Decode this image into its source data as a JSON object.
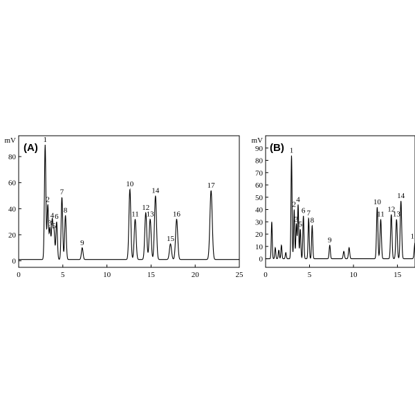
{
  "chart_data": [
    {
      "type": "line",
      "panel_label": "(A)",
      "ylabel": "mV",
      "xlim": [
        0,
        25
      ],
      "ylim": [
        -5,
        96
      ],
      "x_ticks": [
        0,
        5,
        10,
        15,
        20,
        25
      ],
      "y_ticks": [
        0,
        20,
        40,
        60,
        80
      ],
      "baseline": 1,
      "peaks": [
        {
          "label": "1",
          "t": 3.0,
          "h": 88
        },
        {
          "label": "2",
          "t": 3.3,
          "h": 42
        },
        {
          "label": "3",
          "t": 3.55,
          "h": 24
        },
        {
          "label": "4",
          "t": 3.8,
          "h": 30
        },
        {
          "label": "5",
          "t": 4.0,
          "h": 22
        },
        {
          "label": "6",
          "t": 4.3,
          "h": 29
        },
        {
          "label": "7",
          "t": 4.9,
          "h": 48
        },
        {
          "label": "8",
          "t": 5.3,
          "h": 34
        },
        {
          "label": "9",
          "t": 7.2,
          "h": 9
        },
        {
          "label": "10",
          "t": 12.6,
          "h": 54
        },
        {
          "label": "11",
          "t": 13.2,
          "h": 31
        },
        {
          "label": "12",
          "t": 14.4,
          "h": 36
        },
        {
          "label": "13",
          "t": 14.9,
          "h": 31
        },
        {
          "label": "14",
          "t": 15.5,
          "h": 49
        },
        {
          "label": "15",
          "t": 17.2,
          "h": 12
        },
        {
          "label": "16",
          "t": 17.9,
          "h": 31
        },
        {
          "label": "17",
          "t": 21.8,
          "h": 53
        }
      ]
    },
    {
      "type": "line",
      "panel_label": "(B)",
      "ylabel": "mV",
      "xlim": [
        0,
        17
      ],
      "ylim": [
        -7,
        100
      ],
      "x_ticks": [
        0,
        5,
        10,
        15
      ],
      "y_ticks": [
        0,
        10,
        20,
        30,
        40,
        50,
        60,
        70,
        80,
        90
      ],
      "baseline": 0,
      "peaks": [
        {
          "label": "",
          "t": 0.7,
          "h": 30
        },
        {
          "label": "",
          "t": 1.1,
          "h": 9
        },
        {
          "label": "",
          "t": 1.5,
          "h": 7
        },
        {
          "label": "",
          "t": 1.8,
          "h": 11
        },
        {
          "label": "",
          "t": 2.3,
          "h": 5
        },
        {
          "label": "1",
          "t": 2.95,
          "h": 84
        },
        {
          "label": "2",
          "t": 3.25,
          "h": 40
        },
        {
          "label": "3",
          "t": 3.5,
          "h": 28
        },
        {
          "label": "4",
          "t": 3.7,
          "h": 44
        },
        {
          "label": "5",
          "t": 3.95,
          "h": 24
        },
        {
          "label": "6",
          "t": 4.3,
          "h": 35
        },
        {
          "label": "7",
          "t": 4.9,
          "h": 33
        },
        {
          "label": "8",
          "t": 5.3,
          "h": 27
        },
        {
          "label": "9",
          "t": 7.3,
          "h": 11
        },
        {
          "label": "",
          "t": 8.9,
          "h": 6
        },
        {
          "label": "",
          "t": 9.5,
          "h": 9
        },
        {
          "label": "10",
          "t": 12.7,
          "h": 42
        },
        {
          "label": "11",
          "t": 13.1,
          "h": 32
        },
        {
          "label": "12",
          "t": 14.3,
          "h": 36
        },
        {
          "label": "13",
          "t": 14.9,
          "h": 32
        },
        {
          "label": "14",
          "t": 15.4,
          "h": 47
        },
        {
          "label": "1",
          "t": 17.0,
          "h": 13
        }
      ]
    }
  ]
}
